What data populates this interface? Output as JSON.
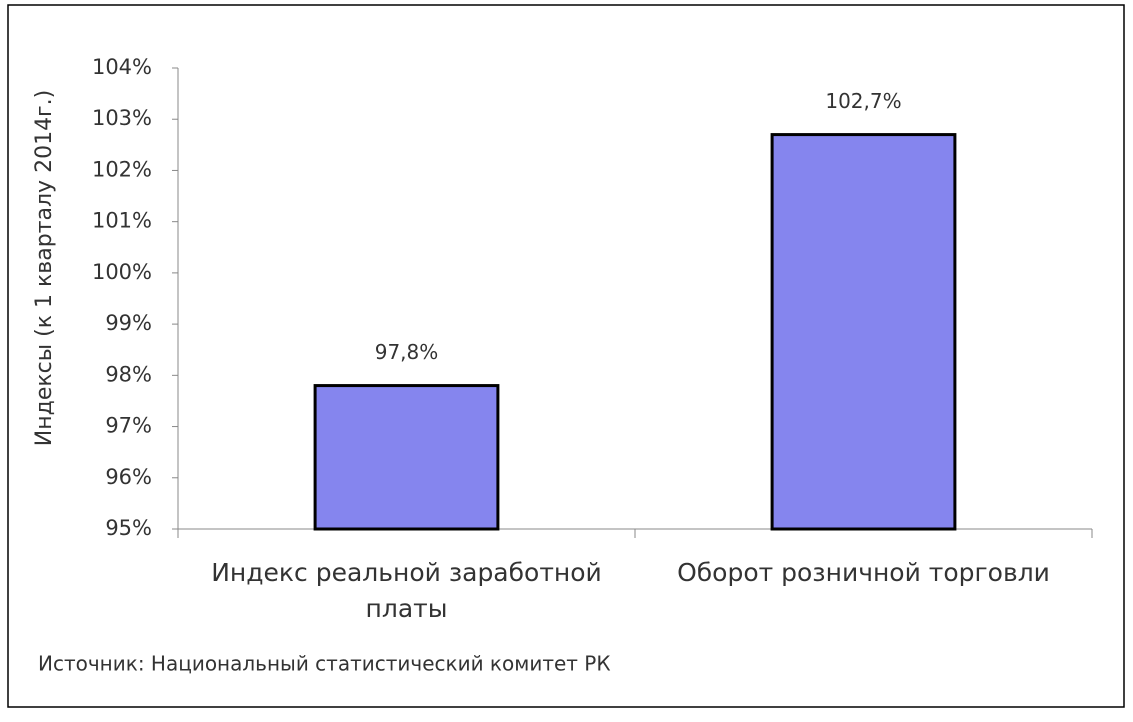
{
  "chart_data": {
    "type": "bar",
    "y_label": "Индексы (к 1 кварталу 2014г.)",
    "categories": [
      "Индекс реальной заработной платы",
      "Оборот розничной торговли"
    ],
    "values": [
      97.8,
      102.7
    ],
    "value_labels": [
      "97,8%",
      "102,7%"
    ],
    "color": "#8585ee",
    "edge_color": "#000000",
    "ylim": [
      95,
      104
    ],
    "yticks": [
      {
        "value": 95,
        "label": "95%"
      },
      {
        "value": 96,
        "label": "96%"
      },
      {
        "value": 97,
        "label": "97%"
      },
      {
        "value": 98,
        "label": "98%"
      },
      {
        "value": 99,
        "label": "99%"
      },
      {
        "value": 100,
        "label": "100%"
      },
      {
        "value": 101,
        "label": "101%"
      },
      {
        "value": 102,
        "label": "102%"
      },
      {
        "value": 103,
        "label": "103%"
      },
      {
        "value": 104,
        "label": "104%"
      }
    ],
    "grid": false,
    "source": "Источник: Национальный статистический комитет РК"
  }
}
